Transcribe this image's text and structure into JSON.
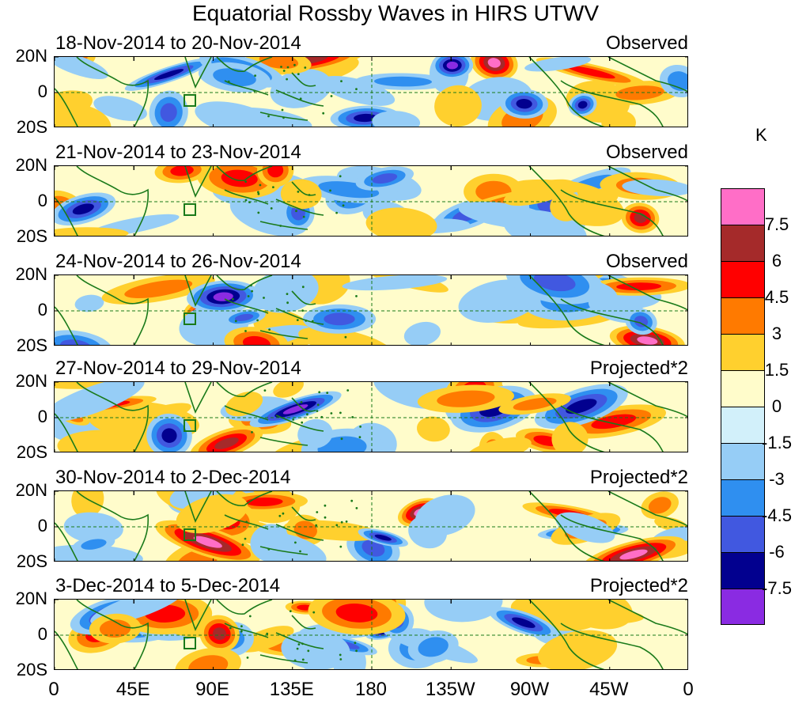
{
  "chart_data": {
    "type": "heatmap",
    "title": "Equatorial Rossby Waves in HIRS UTWV",
    "units": "K",
    "x_axis": {
      "range": [
        0,
        360
      ],
      "tick_labels": [
        "0",
        "45E",
        "90E",
        "135E",
        "180",
        "135W",
        "90W",
        "45W",
        "0"
      ]
    },
    "y_axis": {
      "range": [
        -20,
        20
      ],
      "tick_labels": [
        "20N",
        "0",
        "20S"
      ]
    },
    "colorbar": {
      "levels": [
        "7.5",
        "6",
        "4.5",
        "3",
        "1.5",
        "0",
        "-1.5",
        "-3",
        "-4.5",
        "-6",
        "-7.5"
      ],
      "colors": [
        "#ff6ec7",
        "#a52a2a",
        "#ff0000",
        "#ff7a00",
        "#ffd02e",
        "#fffccb",
        "#d2f0fa",
        "#96cdf6",
        "#2f8ff0",
        "#4158e0",
        "#02008f",
        "#8a2be2"
      ]
    },
    "panels": [
      {
        "date": "18-Nov-2014 to 20-Nov-2014",
        "status": "Observed"
      },
      {
        "date": "21-Nov-2014 to 23-Nov-2014",
        "status": "Observed"
      },
      {
        "date": "24-Nov-2014 to 26-Nov-2014",
        "status": "Observed"
      },
      {
        "date": "27-Nov-2014 to 29-Nov-2014",
        "status": "Projected*2"
      },
      {
        "date": "30-Nov-2014 to 2-Dec-2014",
        "status": "Projected*2"
      },
      {
        "date": "3-Dec-2014 to 5-Dec-2014",
        "status": "Projected*2"
      }
    ]
  }
}
